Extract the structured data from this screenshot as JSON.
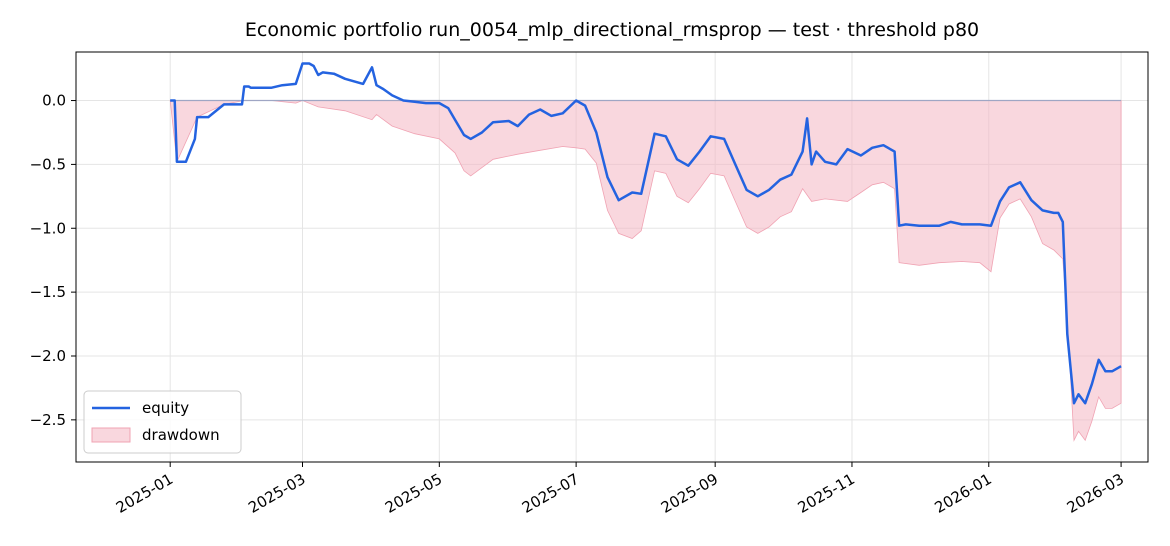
{
  "chart_data": {
    "type": "line",
    "title": "Economic portfolio run_0054_mlp_directional_rmsprop — test · threshold p80",
    "xlabel": "",
    "ylabel": "",
    "x_range": [
      "2024-11-20",
      "2026-03-13"
    ],
    "ylim": [
      -2.83,
      0.38
    ],
    "x_ticks": [
      "2025-01",
      "2025-03",
      "2025-05",
      "2025-07",
      "2025-09",
      "2025-11",
      "2026-01",
      "2026-03"
    ],
    "y_ticks": [
      "0.0",
      "−0.5",
      "−1.0",
      "−1.5",
      "−2.0",
      "−2.5"
    ],
    "y_tick_values": [
      0.0,
      -0.5,
      -1.0,
      -1.5,
      -2.0,
      -2.5
    ],
    "grid": true,
    "legend_position": "lower-left",
    "colors": {
      "equity": "#2463e0",
      "drawdown_fill": "#f4b6c2",
      "baseline": "#9fa6c4"
    },
    "series": [
      {
        "name": "equity",
        "x": [
          "2025-01-01",
          "2025-01-03",
          "2025-01-04",
          "2025-01-07",
          "2025-01-08",
          "2025-01-12",
          "2025-01-13",
          "2025-01-18",
          "2025-01-25",
          "2025-01-26",
          "2025-02-02",
          "2025-02-03",
          "2025-02-05",
          "2025-02-06",
          "2025-02-09",
          "2025-02-13",
          "2025-02-15",
          "2025-02-20",
          "2025-02-26",
          "2025-03-01",
          "2025-03-04",
          "2025-03-06",
          "2025-03-08",
          "2025-03-10",
          "2025-03-15",
          "2025-03-20",
          "2025-03-28",
          "2025-04-01",
          "2025-04-03",
          "2025-04-06",
          "2025-04-10",
          "2025-04-15",
          "2025-04-20",
          "2025-04-25",
          "2025-05-01",
          "2025-05-05",
          "2025-05-08",
          "2025-05-12",
          "2025-05-15",
          "2025-05-20",
          "2025-05-25",
          "2025-06-01",
          "2025-06-05",
          "2025-06-10",
          "2025-06-15",
          "2025-06-20",
          "2025-06-25",
          "2025-07-01",
          "2025-07-05",
          "2025-07-10",
          "2025-07-15",
          "2025-07-20",
          "2025-07-26",
          "2025-07-30",
          "2025-08-05",
          "2025-08-10",
          "2025-08-15",
          "2025-08-20",
          "2025-08-25",
          "2025-08-30",
          "2025-09-05",
          "2025-09-10",
          "2025-09-15",
          "2025-09-20",
          "2025-09-25",
          "2025-09-30",
          "2025-10-05",
          "2025-10-10",
          "2025-10-12",
          "2025-10-14",
          "2025-10-16",
          "2025-10-20",
          "2025-10-25",
          "2025-10-30",
          "2025-11-05",
          "2025-11-10",
          "2025-11-15",
          "2025-11-20",
          "2025-11-22",
          "2025-11-25",
          "2025-12-01",
          "2025-12-10",
          "2025-12-15",
          "2025-12-20",
          "2025-12-28",
          "2026-01-02",
          "2026-01-06",
          "2026-01-10",
          "2026-01-15",
          "2026-01-20",
          "2026-01-25",
          "2026-01-30",
          "2026-02-01",
          "2026-02-03",
          "2026-02-05",
          "2026-02-08",
          "2026-02-10",
          "2026-02-13",
          "2026-02-16",
          "2026-02-19",
          "2026-02-22",
          "2026-02-25",
          "2026-03-01"
        ],
        "values": [
          0.0,
          0.0,
          -0.48,
          -0.48,
          -0.48,
          -0.3,
          -0.13,
          -0.13,
          -0.03,
          -0.03,
          -0.03,
          0.11,
          0.11,
          0.1,
          0.1,
          0.1,
          0.1,
          0.12,
          0.13,
          0.29,
          0.29,
          0.27,
          0.2,
          0.22,
          0.21,
          0.17,
          0.13,
          0.26,
          0.12,
          0.09,
          0.04,
          0.0,
          -0.01,
          -0.02,
          -0.02,
          -0.06,
          -0.15,
          -0.27,
          -0.3,
          -0.25,
          -0.17,
          -0.16,
          -0.2,
          -0.11,
          -0.07,
          -0.12,
          -0.1,
          0.0,
          -0.04,
          -0.25,
          -0.6,
          -0.78,
          -0.72,
          -0.73,
          -0.26,
          -0.28,
          -0.46,
          -0.51,
          -0.4,
          -0.28,
          -0.3,
          -0.5,
          -0.7,
          -0.75,
          -0.7,
          -0.62,
          -0.58,
          -0.4,
          -0.14,
          -0.5,
          -0.4,
          -0.48,
          -0.5,
          -0.38,
          -0.43,
          -0.37,
          -0.35,
          -0.4,
          -0.98,
          -0.97,
          -0.98,
          -0.98,
          -0.95,
          -0.97,
          -0.97,
          -0.98,
          -0.79,
          -0.68,
          -0.64,
          -0.78,
          -0.86,
          -0.88,
          -0.88,
          -0.95,
          -1.83,
          -2.37,
          -2.3,
          -2.37,
          -2.22,
          -2.03,
          -2.12,
          -2.12,
          -2.08
        ]
      },
      {
        "name": "drawdown",
        "x": [
          "2025-01-01",
          "2025-01-04",
          "2025-01-13",
          "2025-01-25",
          "2025-02-03",
          "2025-02-15",
          "2025-02-26",
          "2025-03-01",
          "2025-03-08",
          "2025-03-20",
          "2025-04-01",
          "2025-04-03",
          "2025-04-10",
          "2025-04-20",
          "2025-05-01",
          "2025-05-08",
          "2025-05-12",
          "2025-05-15",
          "2025-05-25",
          "2025-06-05",
          "2025-06-15",
          "2025-06-25",
          "2025-07-01",
          "2025-07-05",
          "2025-07-10",
          "2025-07-15",
          "2025-07-20",
          "2025-07-26",
          "2025-07-30",
          "2025-08-05",
          "2025-08-10",
          "2025-08-15",
          "2025-08-20",
          "2025-08-25",
          "2025-08-30",
          "2025-09-05",
          "2025-09-10",
          "2025-09-15",
          "2025-09-20",
          "2025-09-25",
          "2025-09-30",
          "2025-10-05",
          "2025-10-10",
          "2025-10-14",
          "2025-10-20",
          "2025-10-30",
          "2025-11-05",
          "2025-11-10",
          "2025-11-15",
          "2025-11-20",
          "2025-11-22",
          "2025-12-01",
          "2025-12-10",
          "2025-12-20",
          "2025-12-28",
          "2026-01-02",
          "2026-01-06",
          "2026-01-10",
          "2026-01-15",
          "2026-01-20",
          "2026-01-25",
          "2026-01-30",
          "2026-02-03",
          "2026-02-05",
          "2026-02-08",
          "2026-02-10",
          "2026-02-13",
          "2026-02-16",
          "2026-02-19",
          "2026-02-22",
          "2026-02-25",
          "2026-03-01"
        ],
        "values": [
          0.0,
          -0.48,
          -0.13,
          -0.03,
          0.0,
          0.0,
          -0.02,
          0.0,
          -0.05,
          -0.08,
          -0.15,
          -0.11,
          -0.2,
          -0.26,
          -0.3,
          -0.41,
          -0.55,
          -0.59,
          -0.46,
          -0.42,
          -0.39,
          -0.36,
          -0.37,
          -0.38,
          -0.49,
          -0.86,
          -1.04,
          -1.08,
          -1.02,
          -0.55,
          -0.57,
          -0.75,
          -0.8,
          -0.69,
          -0.57,
          -0.59,
          -0.79,
          -0.99,
          -1.04,
          -0.99,
          -0.91,
          -0.87,
          -0.69,
          -0.79,
          -0.77,
          -0.79,
          -0.72,
          -0.66,
          -0.64,
          -0.69,
          -1.27,
          -1.29,
          -1.27,
          -1.26,
          -1.27,
          -1.34,
          -0.92,
          -0.81,
          -0.77,
          -0.91,
          -1.12,
          -1.17,
          -1.24,
          -1.71,
          -2.66,
          -2.59,
          -2.66,
          -2.51,
          -2.32,
          -2.41,
          -2.41,
          -2.37
        ]
      }
    ]
  }
}
